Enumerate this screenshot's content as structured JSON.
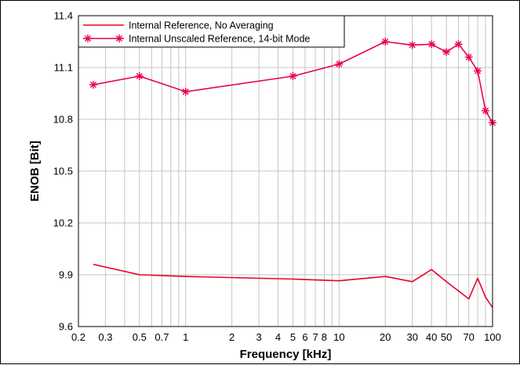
{
  "chart_data": {
    "type": "line",
    "xlabel": "Frequency [kHz]",
    "ylabel": "ENOB [Bit]",
    "xscale": "log",
    "xlim": [
      0.2,
      100
    ],
    "ylim": [
      9.6,
      11.4
    ],
    "grid": true,
    "legend_position": "top-left",
    "xticks": [
      0.2,
      0.3,
      0.5,
      0.7,
      1,
      2,
      3,
      4,
      5,
      6,
      7,
      8,
      10,
      20,
      30,
      40,
      50,
      70,
      100
    ],
    "xtick_labels": [
      "0.2",
      "0.3",
      "0.5",
      "0.7",
      "1",
      "2",
      "3",
      "4",
      "5",
      "6",
      "7",
      "8",
      "10",
      "20",
      "30",
      "40",
      "50",
      "70",
      "100"
    ],
    "xgrid_minor": [
      0.2,
      0.3,
      0.4,
      0.5,
      0.6,
      0.7,
      0.8,
      0.9,
      1,
      2,
      3,
      4,
      5,
      6,
      7,
      8,
      9,
      10,
      20,
      30,
      40,
      50,
      60,
      70,
      80,
      90,
      100
    ],
    "yticks": [
      9.6,
      9.9,
      10.2,
      10.5,
      10.8,
      11.1,
      11.4
    ],
    "ytick_labels": [
      "9.6",
      "9.9",
      "10.2",
      "10.5",
      "10.8",
      "11.1",
      "11.4"
    ],
    "series": [
      {
        "name": "Internal Reference, No Averaging",
        "color": "#e8002a",
        "marker": "none",
        "x": [
          0.25,
          0.5,
          1,
          5,
          10,
          20,
          30,
          40,
          50,
          70,
          80,
          90,
          100
        ],
        "y": [
          9.96,
          9.9,
          9.89,
          9.875,
          9.865,
          9.89,
          9.86,
          9.93,
          9.86,
          9.76,
          9.88,
          9.77,
          9.71
        ]
      },
      {
        "name": "Internal Unscaled Reference, 14-bit Mode",
        "color": "#e8005a",
        "marker": "asterisk",
        "x": [
          0.25,
          0.5,
          1,
          5,
          10,
          20,
          30,
          40,
          50,
          60,
          70,
          80,
          90,
          100
        ],
        "y": [
          11.0,
          11.05,
          10.96,
          11.05,
          11.12,
          11.25,
          11.23,
          11.235,
          11.19,
          11.235,
          11.16,
          11.08,
          10.85,
          10.78
        ]
      }
    ]
  }
}
